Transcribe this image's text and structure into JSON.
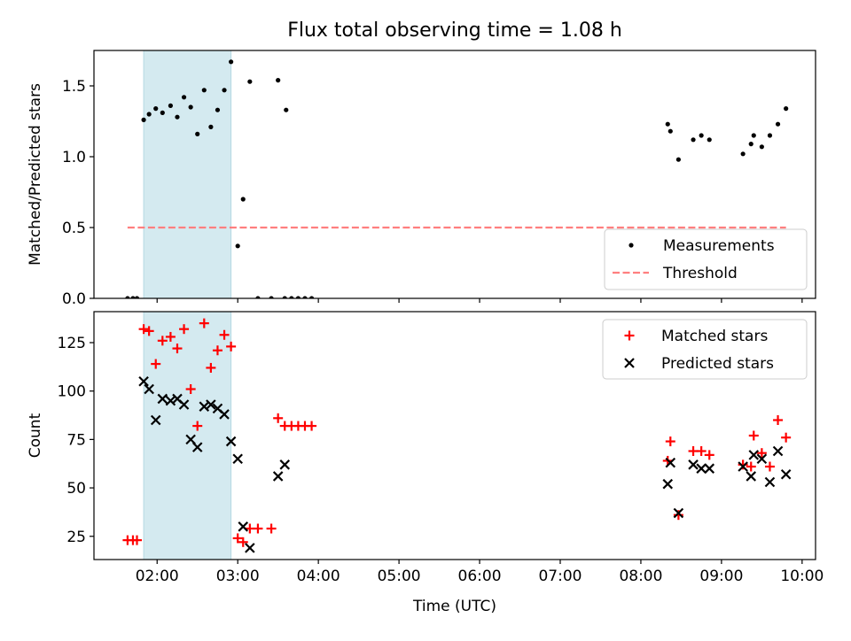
{
  "title": "Flux total observing time = 1.08 h",
  "chart_data": [
    {
      "type": "scatter",
      "ylabel": "Matched/Predicted stars",
      "xlabel": "",
      "ylim": [
        0.0,
        1.75
      ],
      "yticks": [
        0.0,
        0.5,
        1.0,
        1.5
      ],
      "ytick_labels": [
        "0.0",
        "0.5",
        "1.0",
        "1.5"
      ],
      "legend_position": "lower right",
      "series": [
        {
          "name": "Measurements",
          "marker": "dot",
          "color": "#000000",
          "x": [
            "01:38",
            "01:42",
            "01:45",
            "01:50",
            "01:54",
            "01:59",
            "02:04",
            "02:10",
            "02:15",
            "02:20",
            "02:25",
            "02:30",
            "02:35",
            "02:40",
            "02:45",
            "02:50",
            "02:55",
            "03:00",
            "03:04",
            "03:09",
            "03:15",
            "03:25",
            "03:30",
            "03:35",
            "03:36",
            "03:40",
            "03:45",
            "03:50",
            "03:55",
            "08:20",
            "08:22",
            "08:28",
            "08:39",
            "08:45",
            "08:51",
            "09:16",
            "09:22",
            "09:24",
            "09:30",
            "09:36",
            "09:42",
            "09:48"
          ],
          "y": [
            0.0,
            0.0,
            0.0,
            1.26,
            1.3,
            1.34,
            1.31,
            1.36,
            1.28,
            1.42,
            1.35,
            1.16,
            1.47,
            1.21,
            1.33,
            1.47,
            1.67,
            0.37,
            0.7,
            1.53,
            0.0,
            0.0,
            1.54,
            0.0,
            1.33,
            0.0,
            0.0,
            0.0,
            0.0,
            1.23,
            1.18,
            0.98,
            1.12,
            1.15,
            1.12,
            1.02,
            1.09,
            1.15,
            1.07,
            1.15,
            1.23,
            1.34
          ]
        },
        {
          "name": "Threshold",
          "style": "dashed",
          "color": "#ff7f7f",
          "x": [
            "01:38",
            "09:48"
          ],
          "y": [
            0.5,
            0.5
          ]
        }
      ],
      "shaded_region": {
        "x_start": "01:50",
        "x_end": "02:55",
        "color": "#d4eaf0"
      }
    },
    {
      "type": "scatter",
      "ylabel": "Count",
      "xlabel": "Time (UTC)",
      "ylim": [
        13,
        141
      ],
      "yticks": [
        25,
        50,
        75,
        100,
        125
      ],
      "ytick_labels": [
        "25",
        "50",
        "75",
        "100",
        "125"
      ],
      "xlim": [
        "01:13",
        "10:10"
      ],
      "xticks": [
        "02:00",
        "03:00",
        "04:00",
        "05:00",
        "06:00",
        "07:00",
        "08:00",
        "09:00",
        "10:00"
      ],
      "xtick_labels": [
        "02:00",
        "03:00",
        "04:00",
        "05:00",
        "06:00",
        "07:00",
        "08:00",
        "09:00",
        "10:00"
      ],
      "legend_position": "upper right",
      "series": [
        {
          "name": "Matched stars",
          "marker": "plus",
          "color": "#ff0000",
          "x": [
            "01:38",
            "01:42",
            "01:45",
            "01:50",
            "01:54",
            "01:59",
            "02:04",
            "02:10",
            "02:15",
            "02:20",
            "02:25",
            "02:30",
            "02:35",
            "02:40",
            "02:45",
            "02:50",
            "02:55",
            "03:00",
            "03:04",
            "03:09",
            "03:15",
            "03:25",
            "03:30",
            "03:35",
            "03:40",
            "03:45",
            "03:50",
            "03:55",
            "08:20",
            "08:22",
            "08:28",
            "08:39",
            "08:45",
            "08:51",
            "09:16",
            "09:22",
            "09:24",
            "09:30",
            "09:36",
            "09:42",
            "09:48"
          ],
          "y": [
            23,
            23,
            23,
            132,
            131,
            114,
            126,
            128,
            122,
            132,
            101,
            82,
            135,
            112,
            121,
            129,
            123,
            24,
            22,
            29,
            29,
            29,
            86,
            82,
            82,
            82,
            82,
            82,
            64,
            74,
            36,
            69,
            69,
            67,
            62,
            61,
            77,
            68,
            61,
            85,
            76
          ]
        },
        {
          "name": "Predicted stars",
          "marker": "x",
          "color": "#000000",
          "x": [
            "01:50",
            "01:54",
            "01:59",
            "02:04",
            "02:10",
            "02:15",
            "02:20",
            "02:25",
            "02:30",
            "02:35",
            "02:40",
            "02:45",
            "02:50",
            "02:55",
            "03:00",
            "03:04",
            "03:09",
            "03:30",
            "03:35",
            "08:20",
            "08:22",
            "08:28",
            "08:39",
            "08:45",
            "08:51",
            "09:16",
            "09:22",
            "09:24",
            "09:30",
            "09:36",
            "09:42",
            "09:48"
          ],
          "y": [
            105,
            101,
            85,
            96,
            95,
            96,
            93,
            75,
            71,
            92,
            93,
            91,
            88,
            74,
            65,
            30,
            19,
            56,
            62,
            52,
            63,
            37,
            62,
            60,
            60,
            61,
            56,
            67,
            65,
            53,
            69,
            57
          ]
        }
      ],
      "shaded_region": {
        "x_start": "01:50",
        "x_end": "02:55",
        "color": "#d4eaf0"
      }
    }
  ]
}
